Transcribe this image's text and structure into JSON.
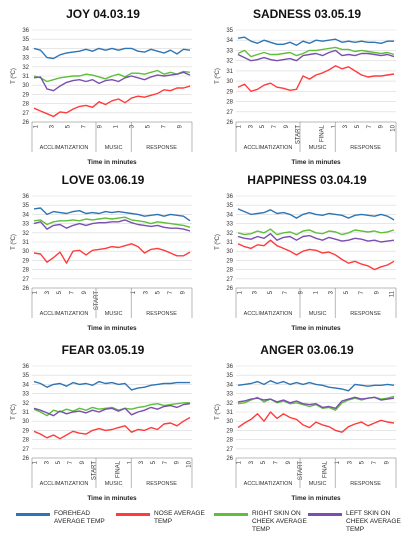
{
  "chart_data": [
    {
      "type": "line",
      "title": "JOY 04.03.19",
      "ylabel": "T (ºC)",
      "xlabel": "Time in minutes",
      "ylim": [
        26,
        36
      ],
      "yticks": [
        26,
        27,
        28,
        29,
        30,
        31,
        32,
        33,
        34,
        35,
        36
      ],
      "x_ticks": [
        "1",
        "",
        "3",
        "",
        "5",
        "",
        "7",
        "",
        "9",
        "",
        "1",
        "",
        "3",
        "",
        "5",
        "",
        "7",
        "",
        "9",
        ""
      ],
      "sections": [
        "ACCLIMATIZATION",
        "MUSIC",
        "RESPONSE"
      ],
      "grid": true,
      "series": [
        {
          "key": "forehead",
          "values": [
            34.0,
            33.8,
            33.0,
            32.9,
            33.3,
            33.5,
            33.6,
            33.7,
            33.9,
            33.7,
            34.0,
            33.8,
            34.0,
            33.8,
            34.0,
            34.0,
            33.7,
            33.6,
            33.9,
            33.7,
            33.5,
            33.8,
            33.4,
            33.9,
            33.8
          ]
        },
        {
          "key": "right",
          "values": [
            31.0,
            30.8,
            30.4,
            30.6,
            30.8,
            30.9,
            31.0,
            31.0,
            31.2,
            31.1,
            30.9,
            30.7,
            31.0,
            31.2,
            30.9,
            31.3,
            31.3,
            31.2,
            31.4,
            31.6,
            31.2,
            31.4,
            31.2,
            31.5,
            31.4
          ]
        },
        {
          "key": "left",
          "values": [
            30.8,
            30.9,
            29.6,
            29.4,
            29.9,
            30.3,
            30.5,
            30.6,
            30.4,
            30.6,
            30.2,
            30.5,
            30.6,
            30.4,
            30.8,
            31.0,
            30.8,
            30.6,
            30.9,
            31.1,
            31.0,
            31.1,
            31.2,
            31.4,
            31.1
          ]
        },
        {
          "key": "nose",
          "values": [
            27.5,
            27.2,
            26.9,
            26.6,
            27.1,
            27.0,
            27.4,
            27.7,
            27.8,
            27.6,
            28.2,
            27.9,
            28.3,
            28.5,
            28.1,
            28.6,
            28.8,
            28.7,
            28.9,
            29.1,
            29.5,
            29.4,
            29.7,
            29.7,
            29.9
          ]
        }
      ]
    },
    {
      "type": "line",
      "title": "SADNESS 03.05.19",
      "ylabel": "T (ºC)",
      "xlabel": "Time in minutes",
      "ylim": [
        26,
        35
      ],
      "yticks": [
        26,
        27,
        28,
        29,
        30,
        31,
        32,
        33,
        34,
        35
      ],
      "x_ticks": [
        "1",
        "",
        "3",
        "",
        "5",
        "",
        "7",
        "",
        "9",
        "",
        "START",
        "",
        "",
        "",
        "FINAL",
        "",
        "1",
        "",
        "3",
        "",
        "5",
        "",
        "7",
        "",
        "9",
        "",
        "10"
      ],
      "sections": [
        "ACCLIMATIZATION",
        "MUSIC",
        "RESPONSE"
      ],
      "grid": true,
      "series": [
        {
          "key": "forehead",
          "values": [
            34.2,
            34.3,
            33.9,
            33.7,
            34.0,
            33.8,
            33.6,
            33.6,
            33.8,
            33.5,
            33.9,
            33.7,
            34.0,
            33.9,
            34.0,
            34.1,
            33.8,
            33.9,
            33.8,
            33.9,
            33.8,
            33.8,
            33.7,
            33.9,
            33.9
          ]
        },
        {
          "key": "right",
          "values": [
            32.7,
            33.0,
            32.4,
            32.6,
            32.8,
            32.6,
            32.6,
            32.7,
            32.8,
            32.5,
            32.7,
            33.0,
            33.0,
            33.1,
            33.2,
            33.3,
            33.1,
            33.1,
            32.9,
            33.0,
            32.9,
            32.8,
            32.7,
            32.8,
            32.6
          ]
        },
        {
          "key": "left",
          "values": [
            32.6,
            32.3,
            32.0,
            32.1,
            32.3,
            32.1,
            32.0,
            32.1,
            32.2,
            32.0,
            32.5,
            32.6,
            32.7,
            32.5,
            32.8,
            33.0,
            32.5,
            32.6,
            32.5,
            32.7,
            32.7,
            32.6,
            32.5,
            32.6,
            32.4
          ]
        },
        {
          "key": "nose",
          "values": [
            29.4,
            29.7,
            29.0,
            29.2,
            29.6,
            29.8,
            29.4,
            29.3,
            29.1,
            29.2,
            30.5,
            30.2,
            30.6,
            30.8,
            31.1,
            31.5,
            31.2,
            31.4,
            31.0,
            30.6,
            30.4,
            30.5,
            30.5,
            30.6,
            30.7
          ]
        }
      ]
    },
    {
      "type": "line",
      "title": "LOVE 03.06.19",
      "ylabel": "T (ºC)",
      "xlabel": "Time in minutes",
      "ylim": [
        26,
        36
      ],
      "yticks": [
        26,
        27,
        28,
        29,
        30,
        31,
        32,
        33,
        34,
        35,
        36
      ],
      "x_ticks": [
        "1",
        "",
        "3",
        "",
        "5",
        "",
        "7",
        "",
        "9",
        "",
        "START",
        "",
        "",
        "",
        "",
        "",
        "1",
        "",
        "3",
        "",
        "5",
        "",
        "7",
        "",
        "9",
        ""
      ],
      "sections": [
        "ACCLIMATIZATION",
        "MUSIC",
        "RESPONSE"
      ],
      "grid": true,
      "series": [
        {
          "key": "forehead",
          "values": [
            34.6,
            34.7,
            34.0,
            34.3,
            34.2,
            34.1,
            34.3,
            34.4,
            34.1,
            34.2,
            34.1,
            34.3,
            34.2,
            34.3,
            34.2,
            34.1,
            34.0,
            33.8,
            33.9,
            34.0,
            33.8,
            34.0,
            33.9,
            33.8,
            33.3
          ]
        },
        {
          "key": "right",
          "values": [
            33.3,
            33.4,
            32.9,
            33.2,
            33.3,
            33.3,
            33.4,
            33.3,
            33.5,
            33.4,
            33.5,
            33.6,
            33.5,
            33.6,
            33.7,
            33.4,
            33.3,
            33.2,
            33.0,
            33.2,
            33.1,
            33.0,
            32.9,
            32.8,
            32.6
          ]
        },
        {
          "key": "left",
          "values": [
            33.0,
            33.2,
            32.4,
            32.8,
            32.9,
            32.5,
            32.8,
            33.0,
            32.8,
            33.0,
            33.1,
            33.1,
            33.2,
            33.2,
            33.4,
            33.1,
            32.9,
            32.8,
            32.7,
            32.8,
            32.6,
            32.5,
            32.5,
            32.4,
            32.2
          ]
        },
        {
          "key": "nose",
          "values": [
            29.8,
            29.7,
            28.8,
            29.3,
            29.9,
            28.7,
            30.0,
            30.1,
            29.6,
            30.1,
            30.2,
            30.3,
            30.5,
            30.4,
            30.6,
            30.8,
            30.5,
            29.8,
            30.2,
            30.3,
            30.1,
            29.8,
            29.5,
            29.5,
            29.9
          ]
        }
      ]
    },
    {
      "type": "line",
      "title": "HAPPINESS 03.04.19",
      "ylabel": "T (ºC)",
      "xlabel": "Time in minutes",
      "ylim": [
        26,
        36
      ],
      "yticks": [
        26,
        27,
        28,
        29,
        30,
        31,
        32,
        33,
        34,
        35,
        36
      ],
      "x_ticks": [
        "1",
        "",
        "3",
        "",
        "5",
        "",
        "7",
        "",
        "9",
        "",
        "1",
        "",
        "3",
        "",
        "5",
        "",
        "7",
        "",
        "9",
        "",
        "11"
      ],
      "sections": [
        "ACCLIMATIZATION",
        "MUSIC",
        "RESPONSE"
      ],
      "grid": true,
      "series": [
        {
          "key": "forehead",
          "values": [
            34.6,
            34.3,
            34.0,
            34.1,
            34.2,
            34.5,
            34.1,
            34.2,
            34.0,
            33.6,
            34.0,
            34.2,
            34.0,
            33.9,
            34.1,
            34.0,
            33.9,
            33.6,
            33.9,
            34.0,
            33.9,
            33.8,
            34.0,
            33.8,
            33.4
          ]
        },
        {
          "key": "right",
          "values": [
            32.0,
            31.8,
            31.9,
            32.2,
            32.0,
            32.4,
            31.8,
            32.0,
            32.1,
            31.8,
            32.2,
            32.3,
            32.0,
            31.9,
            32.2,
            32.1,
            31.8,
            32.0,
            32.3,
            32.2,
            32.1,
            32.2,
            32.0,
            32.1,
            32.3
          ]
        },
        {
          "key": "left",
          "values": [
            31.6,
            31.4,
            31.3,
            31.6,
            31.4,
            31.9,
            31.2,
            31.5,
            31.6,
            31.2,
            31.6,
            31.7,
            31.4,
            31.2,
            31.5,
            31.3,
            31.1,
            31.2,
            31.4,
            31.3,
            31.1,
            31.2,
            31.0,
            31.1,
            31.2
          ]
        },
        {
          "key": "nose",
          "values": [
            30.8,
            30.5,
            30.3,
            30.7,
            30.6,
            31.2,
            30.6,
            30.3,
            30.0,
            29.6,
            30.0,
            30.2,
            30.1,
            29.8,
            29.9,
            29.6,
            29.1,
            28.7,
            28.9,
            28.6,
            28.4,
            28.0,
            28.3,
            28.5,
            28.9
          ]
        }
      ]
    },
    {
      "type": "line",
      "title": "FEAR 03.05.19",
      "ylabel": "T (ºC)",
      "xlabel": "Time in minutes",
      "ylim": [
        26,
        36
      ],
      "yticks": [
        26,
        27,
        28,
        29,
        30,
        31,
        32,
        33,
        34,
        35,
        36
      ],
      "x_ticks": [
        "1",
        "",
        "3",
        "",
        "5",
        "",
        "7",
        "",
        "9",
        "",
        "START",
        "",
        "",
        "",
        "FINAL",
        "",
        "1",
        "",
        "3",
        "",
        "5",
        "",
        "7",
        "",
        "9",
        "",
        "10"
      ],
      "sections": [
        "ACCLIMATIZATION",
        "MUSIC",
        "RESPONSE"
      ],
      "grid": true,
      "series": [
        {
          "key": "forehead",
          "values": [
            34.3,
            34.1,
            33.7,
            34.0,
            34.1,
            33.8,
            34.2,
            34.0,
            34.1,
            33.9,
            34.3,
            34.1,
            34.2,
            34.0,
            34.1,
            33.4,
            33.6,
            33.7,
            33.9,
            34.0,
            34.1,
            34.1,
            34.2,
            34.2,
            34.2
          ]
        },
        {
          "key": "right",
          "values": [
            31.3,
            31.0,
            30.6,
            31.2,
            31.0,
            31.3,
            31.1,
            31.4,
            31.2,
            31.5,
            31.3,
            31.4,
            31.5,
            31.2,
            31.4,
            31.3,
            31.5,
            31.6,
            31.8,
            31.9,
            31.7,
            31.8,
            31.9,
            32.0,
            32.0
          ]
        },
        {
          "key": "left",
          "values": [
            31.4,
            31.2,
            30.9,
            30.6,
            31.1,
            30.8,
            31.0,
            31.1,
            30.9,
            31.2,
            31.0,
            31.3,
            31.4,
            31.1,
            31.4,
            30.7,
            31.0,
            31.2,
            31.5,
            31.3,
            31.6,
            31.7,
            31.5,
            31.8,
            31.9
          ]
        },
        {
          "key": "nose",
          "values": [
            28.9,
            28.6,
            28.2,
            28.5,
            28.1,
            28.5,
            28.9,
            28.7,
            28.6,
            29.0,
            29.2,
            29.0,
            29.1,
            29.3,
            29.5,
            28.8,
            29.1,
            29.0,
            29.3,
            29.1,
            29.7,
            29.8,
            29.5,
            30.0,
            30.4
          ]
        }
      ]
    },
    {
      "type": "line",
      "title": "ANGER 03.06.19",
      "ylabel": "T (ºC)",
      "xlabel": "Time in minutes",
      "ylim": [
        26,
        36
      ],
      "yticks": [
        26,
        27,
        28,
        29,
        30,
        31,
        32,
        33,
        34,
        35,
        36
      ],
      "x_ticks": [
        "1",
        "",
        "3",
        "",
        "5",
        "",
        "7",
        "",
        "9",
        "",
        "START",
        "",
        "",
        "",
        "FINAL",
        "",
        "1",
        "",
        "3",
        "",
        "5",
        "",
        "7",
        "",
        "9",
        ""
      ],
      "sections": [
        "ACCLIMATIZATION",
        "MUSIC",
        "RESPONSE"
      ],
      "grid": true,
      "series": [
        {
          "key": "forehead",
          "values": [
            33.9,
            34.0,
            34.1,
            34.3,
            34.0,
            34.4,
            34.1,
            34.3,
            34.0,
            34.2,
            34.0,
            34.2,
            34.0,
            33.9,
            33.7,
            33.6,
            33.5,
            33.3,
            34.0,
            33.9,
            33.8,
            33.9,
            33.9,
            34.0,
            33.9
          ]
        },
        {
          "key": "right",
          "values": [
            31.9,
            32.0,
            32.3,
            32.6,
            32.1,
            32.4,
            32.0,
            32.2,
            31.9,
            32.0,
            31.8,
            31.6,
            31.8,
            31.4,
            31.5,
            31.2,
            32.0,
            32.3,
            32.5,
            32.3,
            32.5,
            32.6,
            32.4,
            32.5,
            32.7
          ]
        },
        {
          "key": "left",
          "values": [
            32.1,
            32.2,
            32.4,
            32.5,
            32.3,
            32.4,
            32.1,
            32.3,
            32.0,
            32.2,
            31.9,
            31.8,
            31.9,
            31.5,
            31.6,
            31.4,
            32.2,
            32.4,
            32.6,
            32.4,
            32.5,
            32.6,
            32.3,
            32.4,
            32.5
          ]
        },
        {
          "key": "nose",
          "values": [
            29.3,
            29.8,
            30.2,
            30.8,
            30.0,
            31.0,
            30.3,
            30.8,
            30.4,
            30.2,
            29.6,
            29.3,
            29.9,
            29.6,
            29.4,
            29.0,
            28.8,
            29.4,
            29.7,
            29.9,
            29.5,
            29.8,
            30.1,
            29.9,
            29.8
          ]
        }
      ]
    }
  ],
  "legend": [
    {
      "key": "forehead",
      "label": "FOREHEAD AVERAGE TEMP",
      "color": "#2e75b6"
    },
    {
      "key": "nose",
      "label": "NOSE AVERAGE TEMP",
      "color": "#ff3b3b"
    },
    {
      "key": "right",
      "label": "RIGHT SKIN ON CHEEK AVERAGE TEMP",
      "color": "#5fbf3a"
    },
    {
      "key": "left",
      "label": "LEFT SKIN ON CHEEK AVERAGE TEMP",
      "color": "#7a4fb0"
    }
  ]
}
